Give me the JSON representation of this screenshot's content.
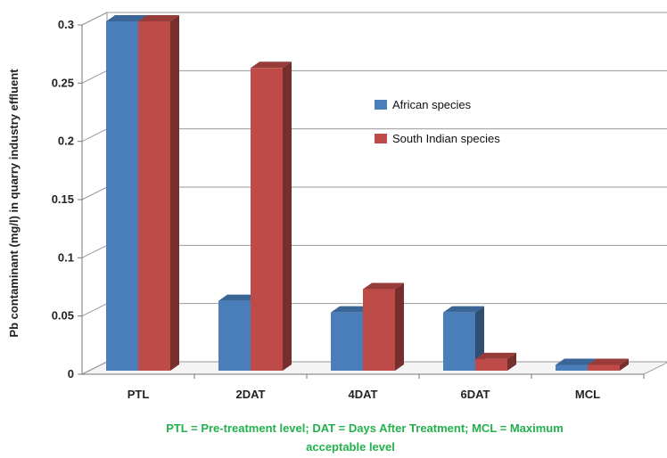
{
  "chart_data": {
    "type": "bar",
    "categories": [
      "PTL",
      "2DAT",
      "4DAT",
      "6DAT",
      "MCL"
    ],
    "series": [
      {
        "name": "African species",
        "values": [
          0.3,
          0.06,
          0.05,
          0.05,
          0.005
        ],
        "color": "#4a7ebb"
      },
      {
        "name": "South Indian species",
        "values": [
          0.3,
          0.26,
          0.07,
          0.01,
          0.005
        ],
        "color": "#be4b48"
      }
    ],
    "ylabel": "Pb contaminant  (mg/l) in quarry industry effluent",
    "ylim": [
      0,
      0.3
    ],
    "yticks": [
      "0",
      "0.05",
      "0.1",
      "0.15",
      "0.2",
      "0.25",
      "0.3"
    ],
    "grid": true,
    "legend_position": "right",
    "note": "PTL = Pre-treatment level;  DAT = Days  After Treatment; MCL = Maximum acceptable  level",
    "note_color": "#22b14c"
  }
}
